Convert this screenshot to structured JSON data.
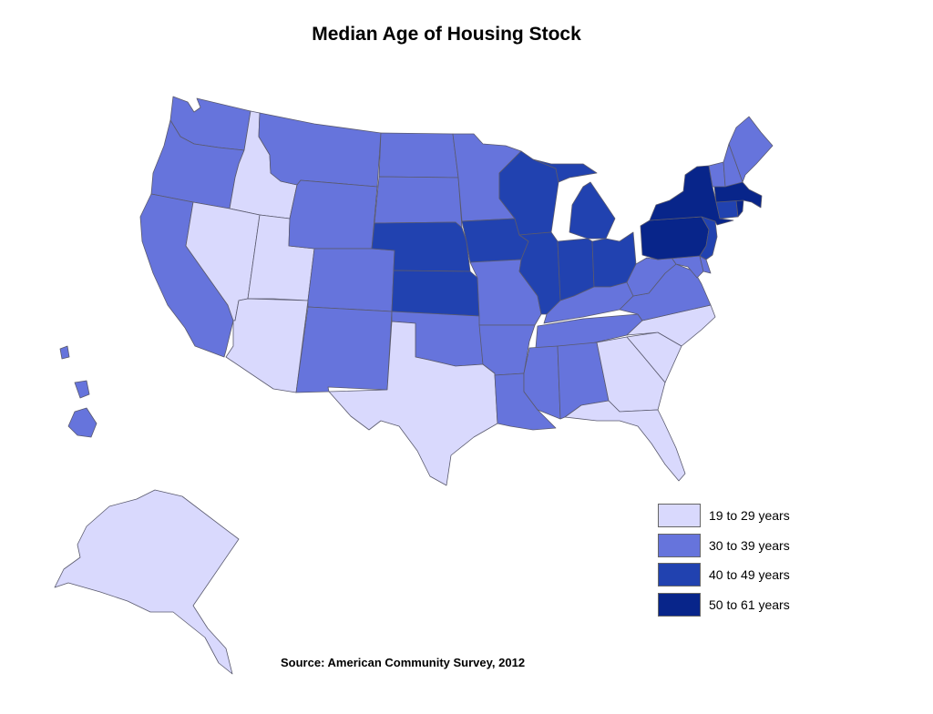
{
  "title": "Median Age of Housing Stock",
  "source": "Source: American Community Survey, 2012",
  "legend": [
    {
      "label": "19 to 29 years",
      "color": "#d9d9fd"
    },
    {
      "label": "30 to 39 years",
      "color": "#6674dc"
    },
    {
      "label": "40 to 49 years",
      "color": "#2142b0"
    },
    {
      "label": "50 to 61 years",
      "color": "#08258a"
    }
  ],
  "states": [
    {
      "code": "WA",
      "bin": 1
    },
    {
      "code": "OR",
      "bin": 1
    },
    {
      "code": "CA",
      "bin": 1
    },
    {
      "code": "ID",
      "bin": 0
    },
    {
      "code": "NV",
      "bin": 0
    },
    {
      "code": "UT",
      "bin": 0
    },
    {
      "code": "AZ",
      "bin": 0
    },
    {
      "code": "MT",
      "bin": 1
    },
    {
      "code": "WY",
      "bin": 1
    },
    {
      "code": "CO",
      "bin": 1
    },
    {
      "code": "NM",
      "bin": 1
    },
    {
      "code": "ND",
      "bin": 1
    },
    {
      "code": "SD",
      "bin": 1
    },
    {
      "code": "NE",
      "bin": 2
    },
    {
      "code": "KS",
      "bin": 2
    },
    {
      "code": "OK",
      "bin": 1
    },
    {
      "code": "TX",
      "bin": 0
    },
    {
      "code": "MN",
      "bin": 1
    },
    {
      "code": "IA",
      "bin": 2
    },
    {
      "code": "MO",
      "bin": 1
    },
    {
      "code": "AR",
      "bin": 1
    },
    {
      "code": "LA",
      "bin": 1
    },
    {
      "code": "WI",
      "bin": 2
    },
    {
      "code": "IL",
      "bin": 2
    },
    {
      "code": "MI",
      "bin": 2
    },
    {
      "code": "IN",
      "bin": 2
    },
    {
      "code": "OH",
      "bin": 2
    },
    {
      "code": "KY",
      "bin": 1
    },
    {
      "code": "TN",
      "bin": 1
    },
    {
      "code": "MS",
      "bin": 1
    },
    {
      "code": "AL",
      "bin": 1
    },
    {
      "code": "GA",
      "bin": 0
    },
    {
      "code": "FL",
      "bin": 0
    },
    {
      "code": "SC",
      "bin": 0
    },
    {
      "code": "NC",
      "bin": 0
    },
    {
      "code": "VA",
      "bin": 1
    },
    {
      "code": "WV",
      "bin": 1
    },
    {
      "code": "MD",
      "bin": 1
    },
    {
      "code": "DE",
      "bin": 1
    },
    {
      "code": "PA",
      "bin": 3
    },
    {
      "code": "NJ",
      "bin": 2
    },
    {
      "code": "NY",
      "bin": 3
    },
    {
      "code": "CT",
      "bin": 2
    },
    {
      "code": "RI",
      "bin": 3
    },
    {
      "code": "MA",
      "bin": 3
    },
    {
      "code": "VT",
      "bin": 1
    },
    {
      "code": "NH",
      "bin": 1
    },
    {
      "code": "ME",
      "bin": 1
    },
    {
      "code": "AK",
      "bin": 0
    },
    {
      "code": "HI",
      "bin": 1
    }
  ]
}
